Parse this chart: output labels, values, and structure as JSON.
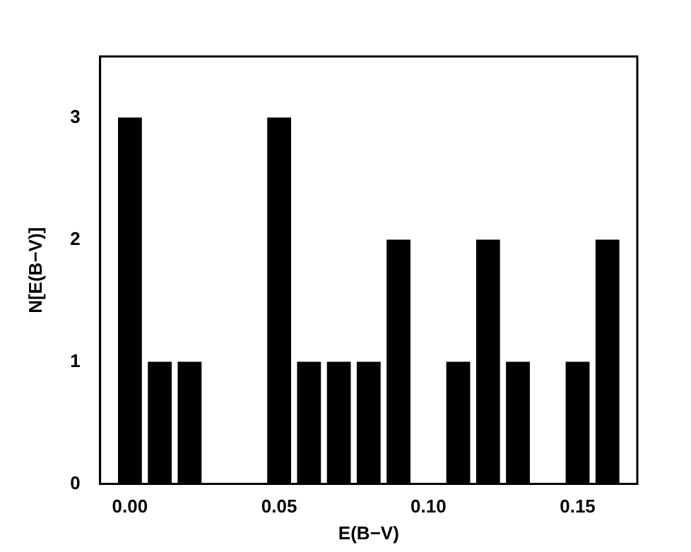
{
  "chart_data": {
    "type": "bar",
    "xlabel": "E(B−V)",
    "ylabel": "N[E(B−V)]",
    "x": [
      0.0,
      0.01,
      0.02,
      0.05,
      0.06,
      0.07,
      0.08,
      0.09,
      0.11,
      0.12,
      0.13,
      0.15,
      0.16
    ],
    "values": [
      3,
      1,
      1,
      3,
      1,
      1,
      1,
      2,
      1,
      2,
      1,
      1,
      2
    ],
    "color": "#000000",
    "xlim": [
      -0.01,
      0.17
    ],
    "xticks": [
      {
        "value": 0,
        "label": "0.00"
      },
      {
        "value": 0.05,
        "label": "0.05"
      },
      {
        "value": 0.1,
        "label": "0.10"
      },
      {
        "value": 0.15,
        "label": "0.15"
      }
    ],
    "ylim": [
      0,
      3.5
    ],
    "yticks": [
      0,
      1,
      2,
      3
    ],
    "grid": false,
    "legend": false
  }
}
